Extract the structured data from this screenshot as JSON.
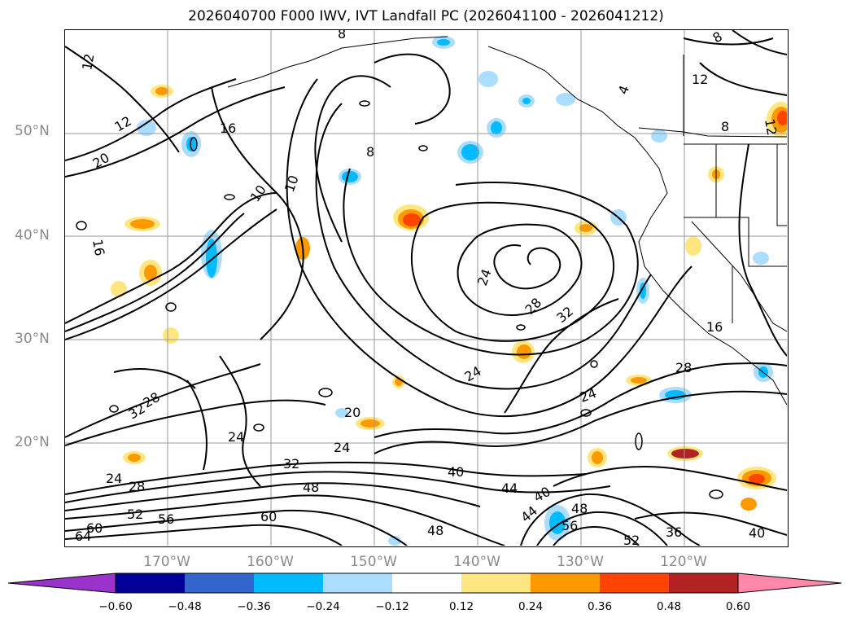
{
  "title": "2026040700 F000 IWV, IVT Landfall PC (2026041100 - 2026041212)",
  "map": {
    "lat_labels": [
      "50°N",
      "40°N",
      "30°N",
      "20°N"
    ],
    "lon_labels": [
      "170°W",
      "160°W",
      "150°W",
      "140°W",
      "130°W",
      "120°W"
    ],
    "contour_labels": [
      "12",
      "8",
      "12",
      "16",
      "12",
      "20",
      "16",
      "8",
      "12",
      "8",
      "10",
      "10",
      "8",
      "24",
      "28",
      "32",
      "16",
      "28",
      "24",
      "32",
      "28",
      "24",
      "20",
      "24",
      "24",
      "32",
      "40",
      "48",
      "44",
      "24",
      "28",
      "52",
      "56",
      "60",
      "64",
      "60",
      "40",
      "44",
      "48",
      "56",
      "52",
      "36",
      "40",
      "48",
      "4"
    ]
  },
  "colorbar": {
    "ticks": [
      "−0.60",
      "−0.48",
      "−0.36",
      "−0.24",
      "−0.12",
      "0.12",
      "0.24",
      "0.36",
      "0.48",
      "0.60"
    ],
    "colors": [
      "#9933cc",
      "#000099",
      "#3366cc",
      "#00bbff",
      "#aaddff",
      "#ffffff",
      "#ffe680",
      "#ff9900",
      "#ff4400",
      "#b22222",
      "#ff88aa"
    ]
  }
}
